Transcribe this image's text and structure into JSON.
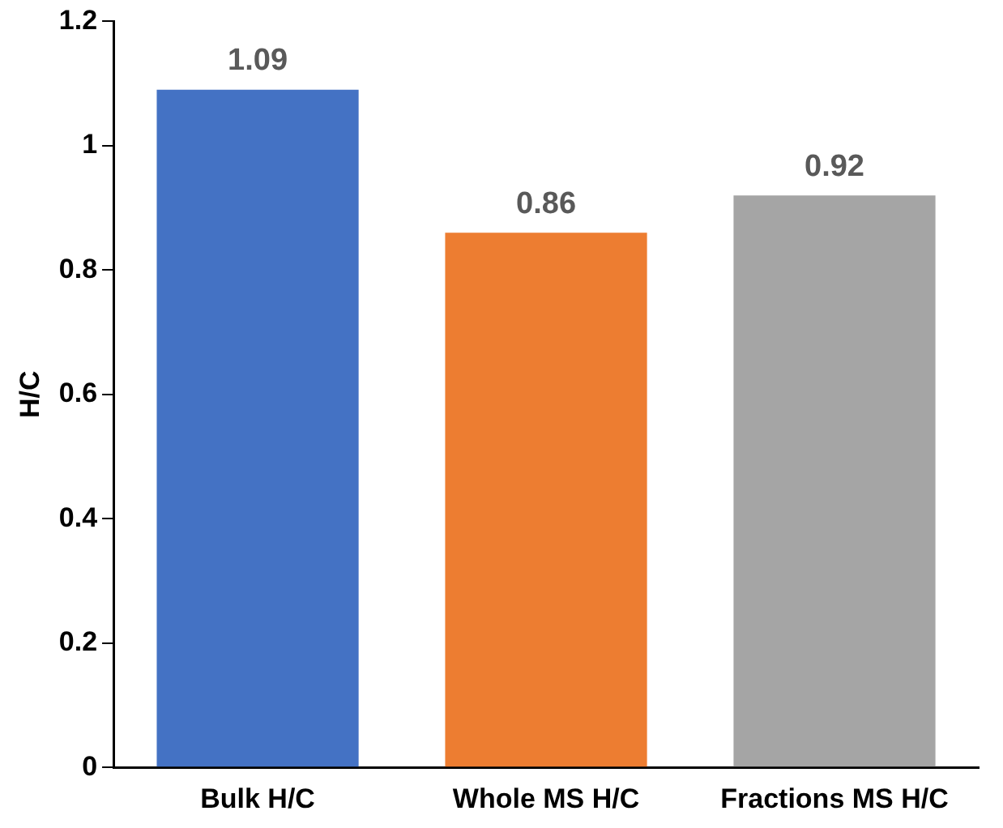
{
  "chart_data": {
    "type": "bar",
    "ylabel": "H/C",
    "categories": [
      "Bulk H/C",
      "Whole MS H/C",
      "Fractions MS H/C"
    ],
    "values": [
      1.09,
      0.86,
      0.92
    ],
    "colors": [
      "#4472c4",
      "#ed7d31",
      "#a5a5a5"
    ],
    "ylim": [
      0,
      1.2
    ],
    "yticks": [
      0,
      0.2,
      0.4,
      0.6,
      0.8,
      1,
      1.2
    ],
    "grid": false,
    "legend": false,
    "data_labels": true
  }
}
